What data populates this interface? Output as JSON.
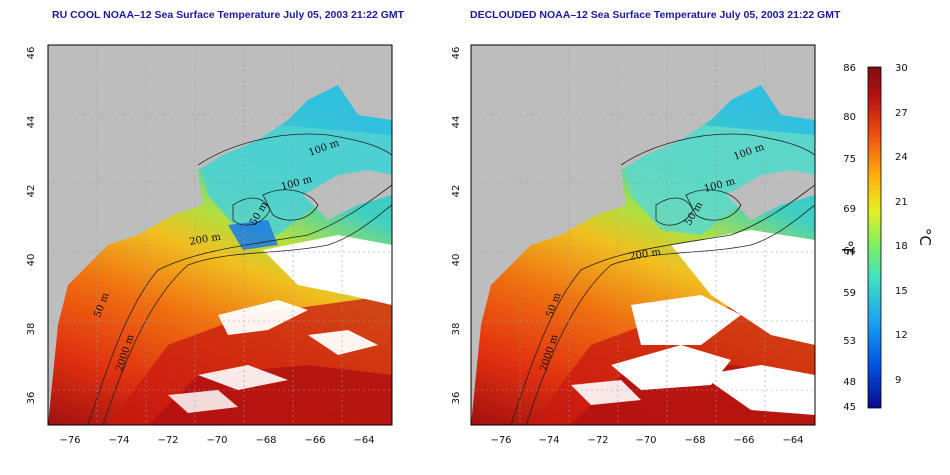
{
  "left_map": {
    "title": "RU COOL NOAA–12 Sea Surface Temperature July 05, 2003 21:22 GMT"
  },
  "right_map": {
    "title": "DECLOUDED NOAA–12 Sea Surface Temperature July 05, 2003 21:22 GMT"
  },
  "axes": {
    "lon_ticks": [
      "−76",
      "−74",
      "−72",
      "−70",
      "−68",
      "−66",
      "−64"
    ],
    "lat_ticks": [
      "36",
      "38",
      "40",
      "42",
      "44",
      "46"
    ]
  },
  "contour_labels": [
    "100 m",
    "100 m",
    "50 m",
    "200 m",
    "50 m",
    "2000 m"
  ],
  "colorbar": {
    "fahrenheit_ticks": [
      "86",
      "80",
      "75",
      "69",
      "64",
      "59",
      "53",
      "48",
      "45"
    ],
    "celsius_ticks": [
      "30",
      "27",
      "24",
      "21",
      "18",
      "15",
      "12",
      "9"
    ],
    "fahrenheit_unit": "°F",
    "celsius_unit": "°C",
    "colors": [
      "#0a0a8c",
      "#0050e0",
      "#1aa0f0",
      "#40e0c0",
      "#80f060",
      "#e8f020",
      "#ffb010",
      "#f05010",
      "#b01010",
      "#801010"
    ]
  },
  "palette": {
    "land": "#bdbdbd",
    "cloud": "#ffffff",
    "contour": "#222222",
    "title": "#1a1a9c"
  }
}
